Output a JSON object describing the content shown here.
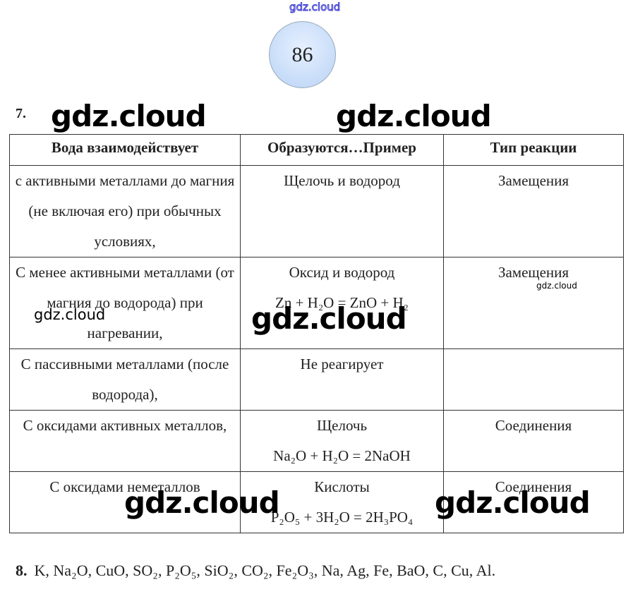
{
  "watermark": "gdz.cloud",
  "page_number": "86",
  "task7": {
    "number": "7.",
    "headers": [
      "Вода взаимодействует",
      "Образуются…Пример",
      "Тип реакции"
    ],
    "rows": [
      {
        "with": "с активными металлами до магния (не включая его) при обычных условиях,",
        "products": "Щелочь и водород",
        "example": "",
        "type": "Замещения"
      },
      {
        "with": "С менее активными металлами (от магния до водорода) при нагревании,",
        "products": "Оксид и водород",
        "example": "Zn + H₂O = ZnO + H₂",
        "type": "Замещения"
      },
      {
        "with": "С пассивными металлами (после водорода),",
        "products": "Не реагирует",
        "example": "",
        "type": ""
      },
      {
        "with": "С оксидами активных металлов,",
        "products": "Щелочь",
        "example": "Na₂O + H₂O = 2NaOH",
        "type": "Соединения"
      },
      {
        "with": "С оксидами неметаллов",
        "products": "Кислоты",
        "example": "P₂O₅ + 3H₂O = 2H₃PO₄",
        "type": "Соединения"
      }
    ]
  },
  "task8": {
    "number": "8.",
    "text": "K, Na₂O, CuO, SO₂, P₂O₅, SiO₂, CO₂, Fe₂O₃, Na, Ag, Fe, BaO, C, Cu, Al."
  }
}
